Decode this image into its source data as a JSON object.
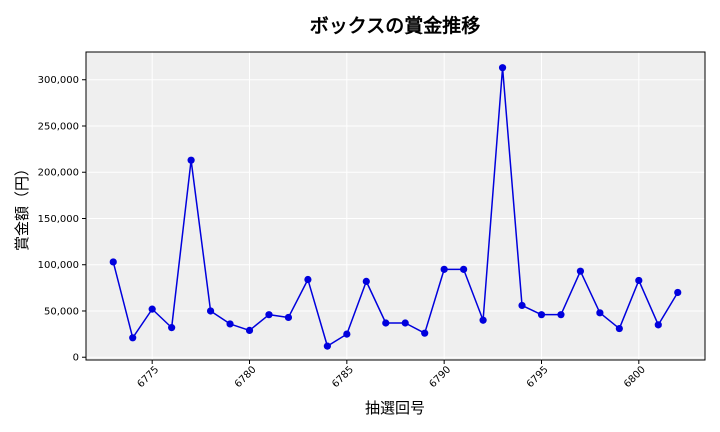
{
  "chart_data": {
    "type": "line",
    "title": "ボックスの賞金推移",
    "xlabel": "抽選回号",
    "ylabel": "賞金額（円）",
    "xlim": [
      6771.6,
      6803.4
    ],
    "ylim": [
      -3000,
      330000
    ],
    "x_ticks": [
      6775,
      6780,
      6785,
      6790,
      6795,
      6800
    ],
    "y_ticks": [
      0,
      50000,
      100000,
      150000,
      200000,
      250000,
      300000
    ],
    "y_tick_labels": [
      "0",
      "50,000",
      "100,000",
      "150,000",
      "200,000",
      "250,000",
      "300,000"
    ],
    "grid": true,
    "series": [
      {
        "color": "#0000dd",
        "x": [
          6773,
          6774,
          6775,
          6776,
          6777,
          6778,
          6779,
          6780,
          6781,
          6782,
          6783,
          6784,
          6785,
          6786,
          6787,
          6788,
          6789,
          6790,
          6791,
          6792,
          6793,
          6794,
          6795,
          6796,
          6797,
          6798,
          6799,
          6800,
          6801,
          6802
        ],
        "values": [
          103000,
          21000,
          52000,
          32000,
          213000,
          50000,
          36000,
          29000,
          46000,
          43000,
          84000,
          12000,
          25000,
          82000,
          37000,
          37000,
          26000,
          95000,
          95000,
          40000,
          313000,
          56000,
          46000,
          46000,
          93000,
          48000,
          31000,
          83000,
          35000,
          70000
        ]
      }
    ]
  }
}
